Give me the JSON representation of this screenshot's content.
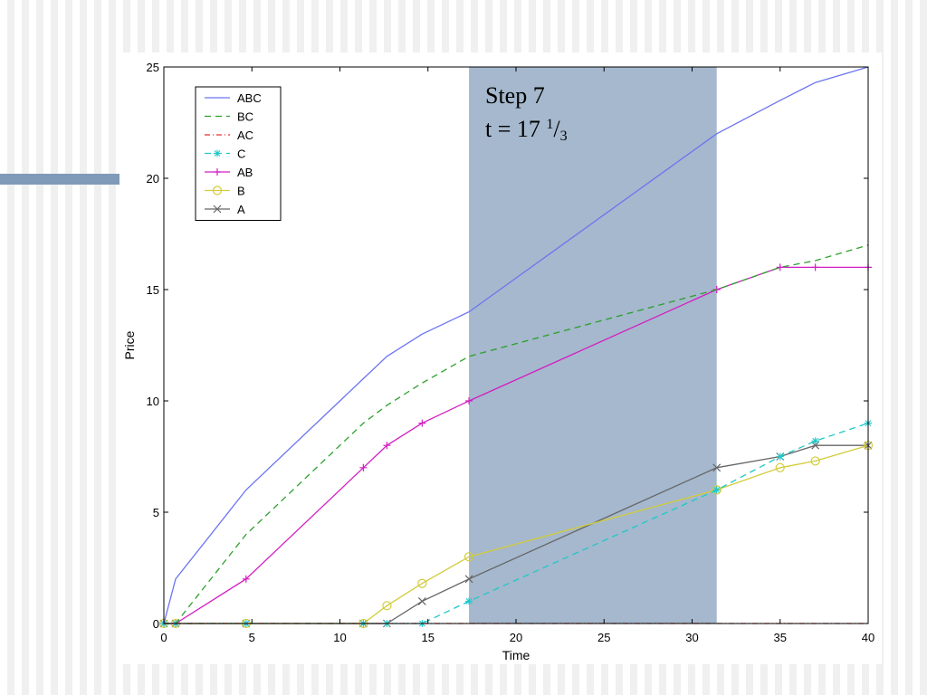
{
  "caption": {
    "step": "Step 7",
    "t_prefix": "t = 17 ",
    "frac_num": "1",
    "frac_den": "3"
  },
  "colors": {
    "background": "#ffffff",
    "stripe": "#f0f0f0",
    "title_rule": "#7f9ab8",
    "highlight": "#7f9ab8"
  },
  "chart_data": {
    "type": "line",
    "xlabel": "Time",
    "ylabel": "Price",
    "xlim": [
      0,
      40
    ],
    "ylim": [
      0,
      25
    ],
    "xticks": [
      0,
      5,
      10,
      15,
      20,
      25,
      30,
      35,
      40
    ],
    "yticks": [
      0,
      5,
      10,
      15,
      20,
      25
    ],
    "grid": false,
    "legend_position": "top-left",
    "highlight_span": [
      17.33,
      31.4
    ],
    "series": [
      {
        "name": "ABC",
        "color": "#6b75f0",
        "dash": "solid",
        "marker": "none",
        "x": [
          0,
          0.67,
          4.67,
          11.33,
          12.67,
          14.67,
          17.33,
          31.4,
          35,
          37,
          40
        ],
        "y": [
          0,
          2,
          6,
          11,
          12,
          13,
          14,
          22,
          23.5,
          24.3,
          25
        ]
      },
      {
        "name": "BC",
        "color": "#2ea02e",
        "dash": "dashed",
        "marker": "none",
        "x": [
          0,
          0.67,
          4.67,
          11.33,
          12.67,
          14.67,
          17.33,
          31.4,
          35,
          37,
          40
        ],
        "y": [
          0,
          0,
          4,
          9,
          9.8,
          10.8,
          12,
          15,
          16,
          16.3,
          17
        ]
      },
      {
        "name": "AC",
        "color": "#e8312b",
        "dash": "dashdot",
        "marker": "none",
        "x": [
          0,
          0.67,
          4.67,
          11.33,
          12.67,
          14.67,
          17.33,
          31.4,
          35,
          37,
          40
        ],
        "y": [
          0,
          0,
          0,
          0,
          0,
          0,
          0,
          0,
          0,
          0,
          0
        ]
      },
      {
        "name": "C",
        "color": "#1fc8c8",
        "dash": "dashed",
        "marker": "asterisk",
        "x": [
          0,
          0.67,
          4.67,
          11.33,
          12.67,
          14.67,
          17.33,
          31.4,
          35,
          37,
          40
        ],
        "y": [
          0,
          0,
          0,
          0,
          0,
          0,
          1,
          6,
          7.5,
          8.2,
          9
        ]
      },
      {
        "name": "AB",
        "color": "#d21fc2",
        "dash": "solid",
        "marker": "plus",
        "x": [
          0,
          0.67,
          4.67,
          11.33,
          12.67,
          14.67,
          17.33,
          31.4,
          35,
          37,
          40
        ],
        "y": [
          0,
          0,
          2,
          7,
          8,
          9,
          10,
          15,
          16,
          16,
          16
        ]
      },
      {
        "name": "B",
        "color": "#d2cc3a",
        "dash": "solid",
        "marker": "circle",
        "x": [
          0,
          0.67,
          4.67,
          11.33,
          12.67,
          14.67,
          17.33,
          31.4,
          35,
          37,
          40
        ],
        "y": [
          0,
          0,
          0,
          0,
          0.8,
          1.8,
          3,
          6,
          7,
          7.3,
          8
        ]
      },
      {
        "name": "A",
        "color": "#666666",
        "dash": "solid",
        "marker": "cross",
        "x": [
          0,
          0.67,
          4.67,
          11.33,
          12.67,
          14.67,
          17.33,
          31.4,
          35,
          37,
          40
        ],
        "y": [
          0,
          0,
          0,
          0,
          0,
          1,
          2,
          7,
          7.5,
          8,
          8
        ]
      }
    ]
  }
}
